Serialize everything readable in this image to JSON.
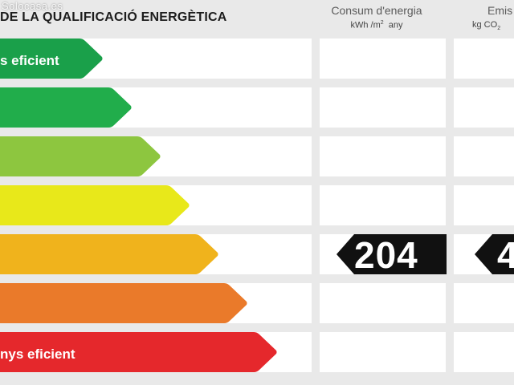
{
  "watermark": "Solocasa.es",
  "title": "DE LA QUALIFICACIÓ ENERGÈTICA",
  "columns": {
    "consum_title": "Consum d'energia",
    "consum_unit_prefix": "kWh /m",
    "consum_unit_sup": "2",
    "consum_unit_suffix": "any",
    "emis_title": "Emis",
    "emis_unit_prefix": "kg CO",
    "emis_unit_sub": "2"
  },
  "bars": [
    {
      "label": "s eficient",
      "color": "#1aa04a",
      "level": 1
    },
    {
      "label": "",
      "color": "#21ad4b",
      "level": 2
    },
    {
      "label": "",
      "color": "#8dc63f",
      "level": 3
    },
    {
      "label": "",
      "color": "#e8e81a",
      "level": 4
    },
    {
      "label": "",
      "color": "#f0b31c",
      "level": 5
    },
    {
      "label": "",
      "color": "#ea7a2a",
      "level": 6
    },
    {
      "label": "nys eficient",
      "color": "#e5282c",
      "level": 7
    }
  ],
  "rating": {
    "consum_value": "204",
    "emis_value_partial": "4",
    "row_level": 5
  }
}
